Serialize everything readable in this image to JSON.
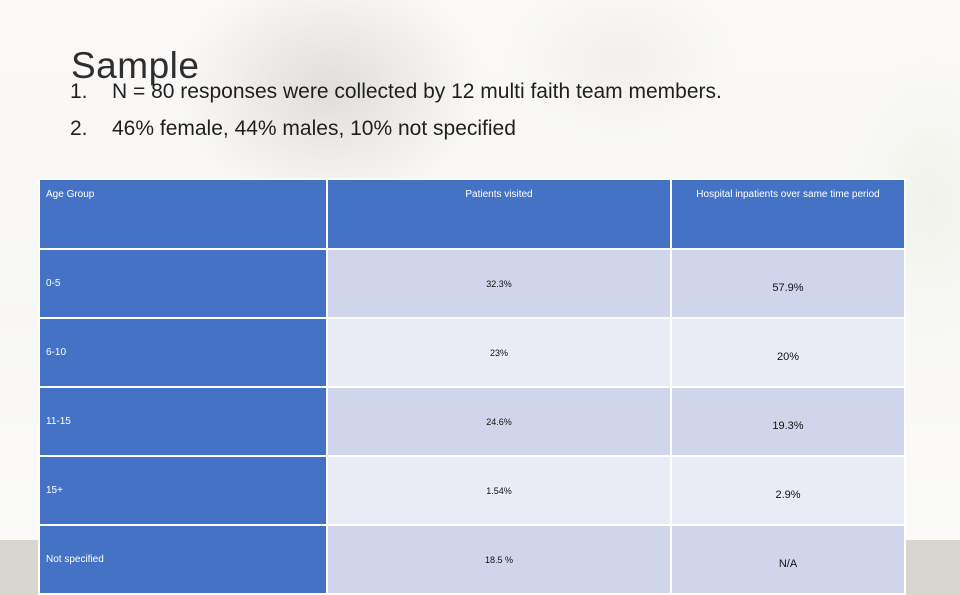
{
  "slide": {
    "title": "Sample",
    "bullets": [
      {
        "num": "1.",
        "text": "N = 80 responses were collected by 12 multi faith team members."
      },
      {
        "num": "2.",
        "text": "46% female, 44% males, 10% not specified"
      }
    ]
  },
  "table": {
    "headers": [
      "Age Group",
      "Patients visited",
      "Hospital inpatients over same time period"
    ],
    "rows": [
      {
        "age": "0-5",
        "visited": "32.3%",
        "inpatients": "57.9%"
      },
      {
        "age": "6-10",
        "visited": "23%",
        "inpatients": "20%"
      },
      {
        "age": "11-15",
        "visited": "24.6%",
        "inpatients": "19.3%"
      },
      {
        "age": "15+",
        "visited": "1.54%",
        "inpatients": "2.9%"
      },
      {
        "age": "Not specified",
        "visited": "18.5 %",
        "inpatients": "N/A"
      }
    ]
  },
  "colors": {
    "header": "#4472c4",
    "row_dark": "#cfd5ea",
    "row_light": "#e9ebf5"
  }
}
